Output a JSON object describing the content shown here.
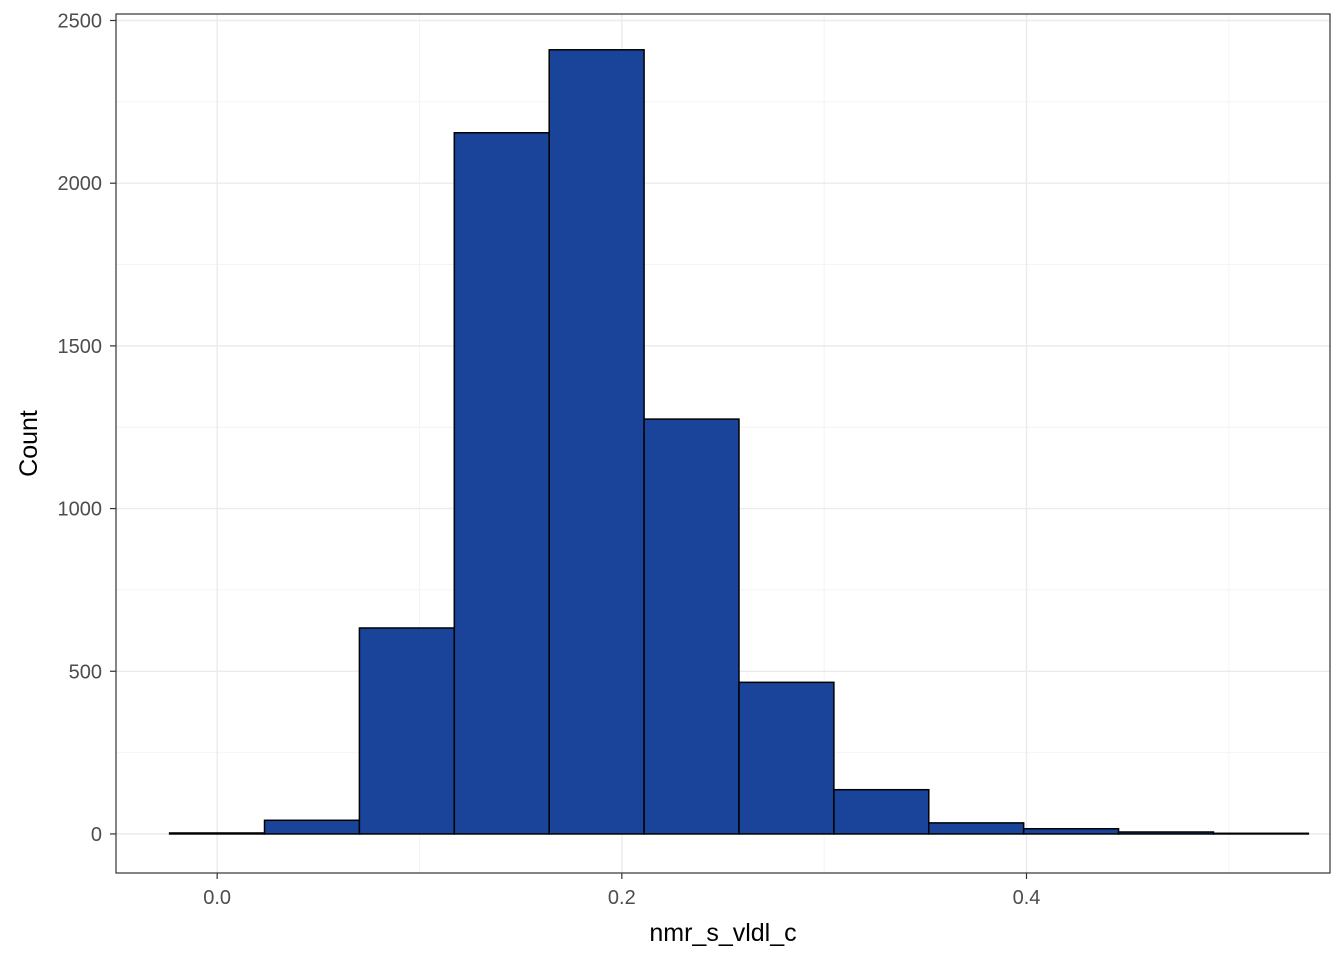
{
  "chart_data": {
    "type": "bar",
    "subtype": "histogram",
    "title": "",
    "xlabel": "nmr_s_vldl_c",
    "ylabel": "Count",
    "xlim": [
      -0.05,
      0.55
    ],
    "ylim": [
      -120,
      2520
    ],
    "x_ticks": [
      0.0,
      0.2,
      0.4
    ],
    "x_tick_labels": [
      "0.0",
      "0.2",
      "0.4"
    ],
    "y_ticks": [
      0,
      500,
      1000,
      1500,
      2000,
      2500
    ],
    "y_tick_labels": [
      "0",
      "500",
      "1000",
      "1500",
      "2000",
      "2500"
    ],
    "bin_width": 0.0469,
    "bins": [
      {
        "x0": -0.0235,
        "x1": 0.0234,
        "count": 3
      },
      {
        "x0": 0.0234,
        "x1": 0.0703,
        "count": 42
      },
      {
        "x0": 0.0703,
        "x1": 0.1172,
        "count": 633
      },
      {
        "x0": 0.1172,
        "x1": 0.1641,
        "count": 2155
      },
      {
        "x0": 0.1641,
        "x1": 0.211,
        "count": 2410
      },
      {
        "x0": 0.211,
        "x1": 0.2579,
        "count": 1275
      },
      {
        "x0": 0.2579,
        "x1": 0.3048,
        "count": 466
      },
      {
        "x0": 0.3048,
        "x1": 0.3517,
        "count": 136
      },
      {
        "x0": 0.3517,
        "x1": 0.3986,
        "count": 34
      },
      {
        "x0": 0.3986,
        "x1": 0.4455,
        "count": 16
      },
      {
        "x0": 0.4455,
        "x1": 0.4924,
        "count": 6
      },
      {
        "x0": 0.4924,
        "x1": 0.5393,
        "count": 2
      }
    ],
    "grid": true,
    "legend": "none"
  },
  "colors": {
    "bar_fill": "#1a4499",
    "bar_stroke": "#000000",
    "grid_major": "#ebebeb",
    "grid_minor": "#f4f4f4",
    "panel_border": "#333333",
    "tick_text": "#4d4d4d"
  }
}
